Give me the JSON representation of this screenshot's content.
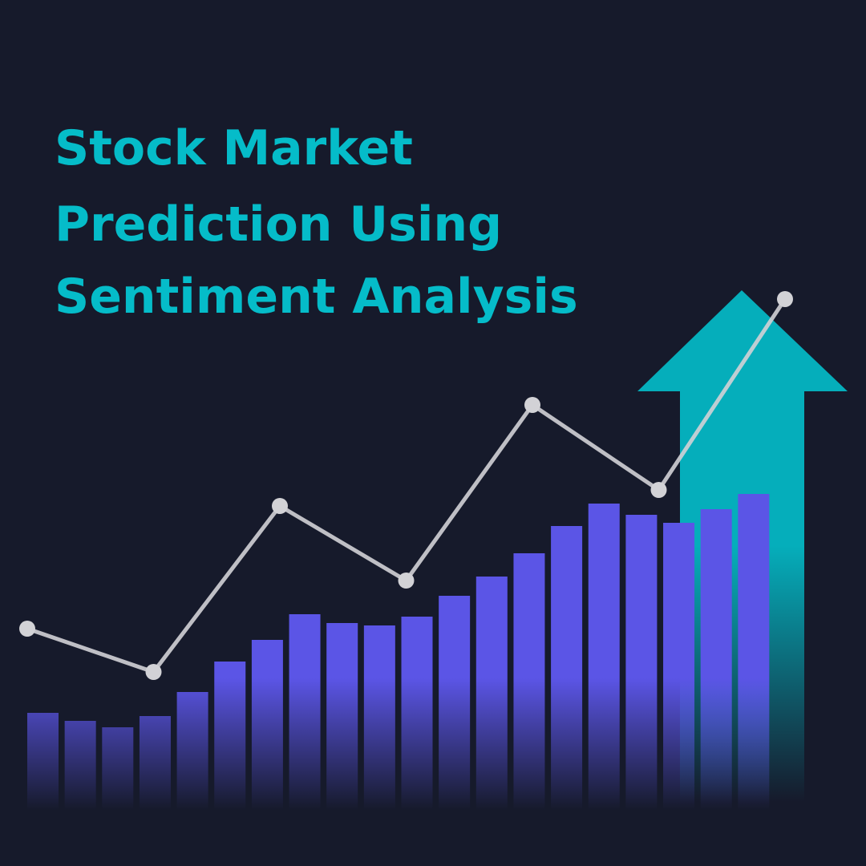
{
  "chart_data": {
    "type": "bar-line",
    "title_lines": [
      "Stock Market",
      "Prediction Using",
      "Sentiment Analysis"
    ],
    "ylim": [
      0,
      1000
    ],
    "bars": {
      "color": "#5b55e6",
      "values": [
        111,
        101,
        93,
        107,
        137,
        175,
        202,
        234,
        223,
        220,
        231,
        257,
        281,
        310,
        344,
        372,
        358,
        348,
        365,
        384
      ]
    },
    "line": {
      "color": "#d2d2d6",
      "values": [
        216,
        162,
        369,
        276,
        495,
        389,
        627
      ]
    }
  }
}
